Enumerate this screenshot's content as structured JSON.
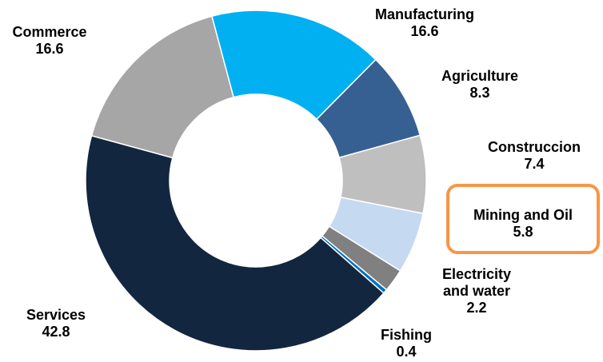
{
  "chart_data": {
    "type": "pie",
    "style": "donut",
    "title": "",
    "slices": [
      {
        "label": "Manufacturing",
        "label_lines": [
          "Manufacturing"
        ],
        "value": 16.6,
        "value_text": "16.6",
        "color": "#00b0f0"
      },
      {
        "label": "Agriculture",
        "label_lines": [
          "Agriculture"
        ],
        "value": 8.3,
        "value_text": "8.3",
        "color": "#366092"
      },
      {
        "label": "Construccion",
        "label_lines": [
          "Construccion"
        ],
        "value": 7.4,
        "value_text": "7.4",
        "color": "#bfbfbf"
      },
      {
        "label": "Mining and Oil",
        "label_lines": [
          "Mining and Oil"
        ],
        "value": 5.8,
        "value_text": "5.8",
        "color": "#c5d9f1",
        "highlighted": true
      },
      {
        "label": "Electricity and water",
        "label_lines": [
          "Electricity",
          "and water"
        ],
        "value": 2.2,
        "value_text": "2.2",
        "color": "#808080"
      },
      {
        "label": "Fishing",
        "label_lines": [
          "Fishing"
        ],
        "value": 0.4,
        "value_text": "0.4",
        "color": "#0070c0"
      },
      {
        "label": "Services",
        "label_lines": [
          "Services"
        ],
        "value": 42.8,
        "value_text": "42.8",
        "color": "#132640"
      },
      {
        "label": "Commerce",
        "label_lines": [
          "Commerce"
        ],
        "value": 16.6,
        "value_text": "16.6",
        "color": "#a6a6a6"
      }
    ],
    "start_angle_deg": -15,
    "highlight_color": "#f79646"
  }
}
